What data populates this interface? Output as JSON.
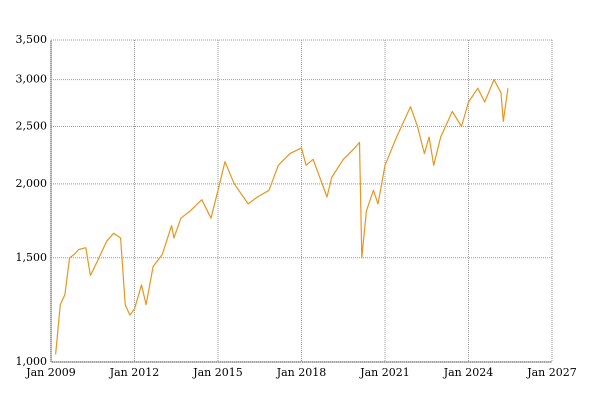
{
  "chart_data": {
    "type": "line",
    "x": [
      "2009-03",
      "2009-05",
      "2009-07",
      "2009-09",
      "2009-11",
      "2010-01",
      "2010-04",
      "2010-06",
      "2010-09",
      "2011-01",
      "2011-04",
      "2011-07",
      "2011-09",
      "2011-11",
      "2012-01",
      "2012-04",
      "2012-06",
      "2012-09",
      "2013-01",
      "2013-05",
      "2013-06",
      "2013-09",
      "2014-01",
      "2014-06",
      "2014-10",
      "2015-01",
      "2015-04",
      "2015-08",
      "2016-02",
      "2016-06",
      "2016-11",
      "2017-03",
      "2017-08",
      "2018-01",
      "2018-03",
      "2018-06",
      "2018-12",
      "2019-02",
      "2019-07",
      "2019-12",
      "2020-02",
      "2020-03",
      "2020-05",
      "2020-08",
      "2020-10",
      "2021-01",
      "2021-06",
      "2021-12",
      "2022-03",
      "2022-06",
      "2022-08",
      "2022-10",
      "2023-01",
      "2023-06",
      "2023-10",
      "2024-01",
      "2024-05",
      "2024-08",
      "2024-12",
      "2025-03",
      "2025-04",
      "2025-06"
    ],
    "series": [
      {
        "color": "#e8961e",
        "values": [
          1030,
          1250,
          1300,
          1500,
          1520,
          1550,
          1560,
          1400,
          1480,
          1600,
          1650,
          1620,
          1250,
          1200,
          1230,
          1350,
          1250,
          1450,
          1520,
          1700,
          1620,
          1750,
          1800,
          1880,
          1750,
          1950,
          2180,
          2000,
          1850,
          1900,
          1950,
          2150,
          2250,
          2300,
          2150,
          2200,
          1900,
          2050,
          2200,
          2300,
          2350,
          1500,
          1800,
          1950,
          1850,
          2150,
          2400,
          2700,
          2500,
          2250,
          2400,
          2150,
          2400,
          2650,
          2500,
          2750,
          2900,
          2750,
          3000,
          2850,
          2550,
          2900
        ]
      }
    ],
    "ylim": [
      1000,
      3500
    ],
    "log_y": true,
    "yticks": [
      {
        "value": 1000,
        "label": "1,000"
      },
      {
        "value": 1500,
        "label": "1,500"
      },
      {
        "value": 2000,
        "label": "2,000"
      },
      {
        "value": 2500,
        "label": "2,500"
      },
      {
        "value": 3000,
        "label": "3,000"
      },
      {
        "value": 3500,
        "label": "3,500"
      }
    ],
    "xlim": [
      "2009-01",
      "2027-01"
    ],
    "xticks": [
      {
        "value": "2009-01",
        "label": "Jan 2009"
      },
      {
        "value": "2012-01",
        "label": "Jan 2012"
      },
      {
        "value": "2015-01",
        "label": "Jan 2015"
      },
      {
        "value": "2018-01",
        "label": "Jan 2018"
      },
      {
        "value": "2021-01",
        "label": "Jan 2021"
      },
      {
        "value": "2024-01",
        "label": "Jan 2024"
      },
      {
        "value": "2027-01",
        "label": "Jan 2027"
      }
    ],
    "grid": true
  }
}
